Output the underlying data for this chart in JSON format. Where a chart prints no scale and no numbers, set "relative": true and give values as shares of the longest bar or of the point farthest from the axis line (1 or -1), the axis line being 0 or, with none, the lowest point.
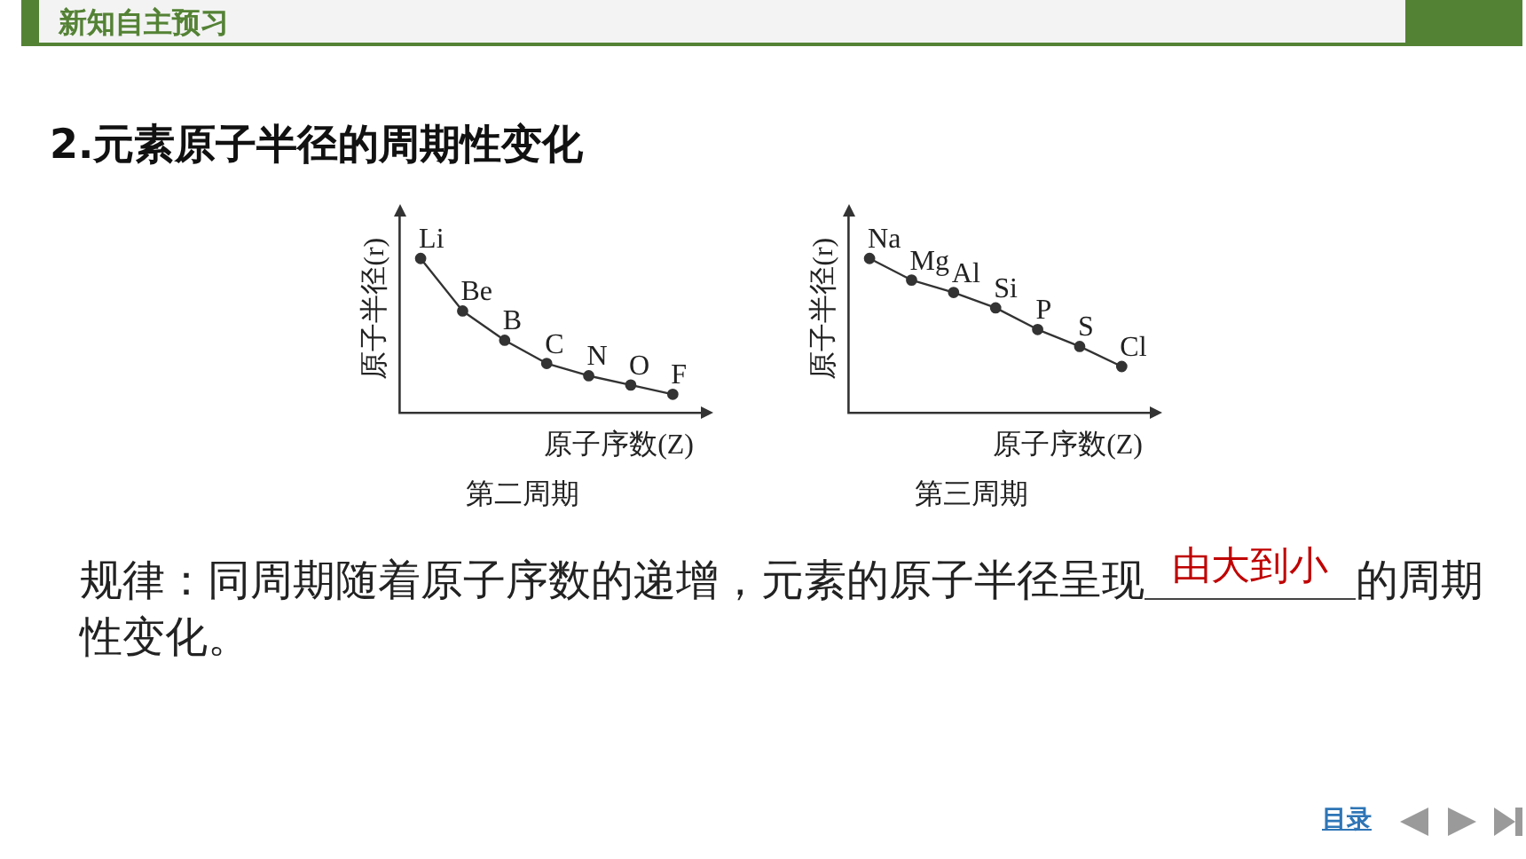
{
  "chart_data": [
    {
      "type": "line",
      "title": "第二周期",
      "xlabel": "原子序数(Z)",
      "ylabel": "原子半径(r)",
      "categories": [
        "Li",
        "Be",
        "B",
        "C",
        "N",
        "O",
        "F"
      ],
      "values": [
        1,
        0.66,
        0.47,
        0.32,
        0.24,
        0.18,
        0.12
      ],
      "color": "#333333",
      "relative": true,
      "marker": "circle",
      "tick_labels": false,
      "annotations": [
        "新知自主预习",
        "2.元素原子半径的周期性变化",
        "规律：同周期随着原子序数的递增，元素的原子半径呈现",
        "由大到小",
        "的周期性变化。",
        "目录"
      ]
    },
    {
      "type": "line",
      "title": "第三周期",
      "xlabel": "原子序数(Z)",
      "ylabel": "原子半径(r)",
      "categories": [
        "Na",
        "Mg",
        "Al",
        "Si",
        "P",
        "S",
        "Cl"
      ],
      "values": [
        1,
        0.86,
        0.78,
        0.68,
        0.54,
        0.43,
        0.3
      ],
      "color": "#333333",
      "relative": true,
      "marker": "circle",
      "tick_labels": false
    }
  ]
}
